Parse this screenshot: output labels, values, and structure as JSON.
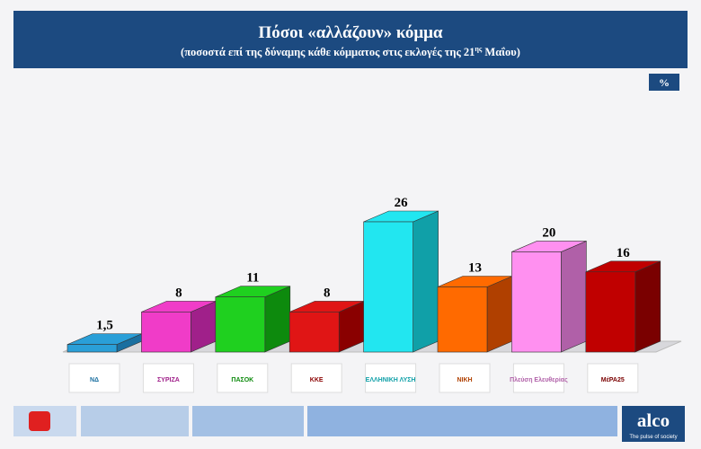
{
  "chart_data": {
    "type": "bar3d",
    "title": "Πόσοι «αλλάζουν» κόμμα",
    "subtitle": "(ποσοστά επί της δύναμης κάθε κόμματος στις εκλογές της 21",
    "subtitle_superscript": "ης",
    "subtitle_end": " Μαΐου)",
    "unit_label": "%",
    "categories": [
      "ΝΔ",
      "ΣΥΡΙΖΑ",
      "ΠΑΣΟΚ",
      "ΚΚΕ",
      "ΕΛΛΗΝΙΚΗ ΛΥΣΗ",
      "ΝΙΚΗ",
      "Πλεύση Ελευθερίας",
      "ΜέΡΑ25"
    ],
    "values": [
      1.5,
      8,
      11,
      8,
      26,
      13,
      20,
      16
    ],
    "value_labels": [
      "1,5",
      "8",
      "11",
      "8",
      "26",
      "13",
      "20",
      "16"
    ],
    "colors": [
      "#2a9fd8",
      "#f03cc8",
      "#1fd01f",
      "#e01515",
      "#22e6f0",
      "#ff6a00",
      "#ff90f0",
      "#c00000"
    ],
    "side_colors": [
      "#1a6fa0",
      "#a0208a",
      "#0d8a0d",
      "#8a0000",
      "#10a0a8",
      "#b04000",
      "#b060a8",
      "#7a0000"
    ],
    "brand": "alco",
    "tagline": "The pulse of society"
  }
}
